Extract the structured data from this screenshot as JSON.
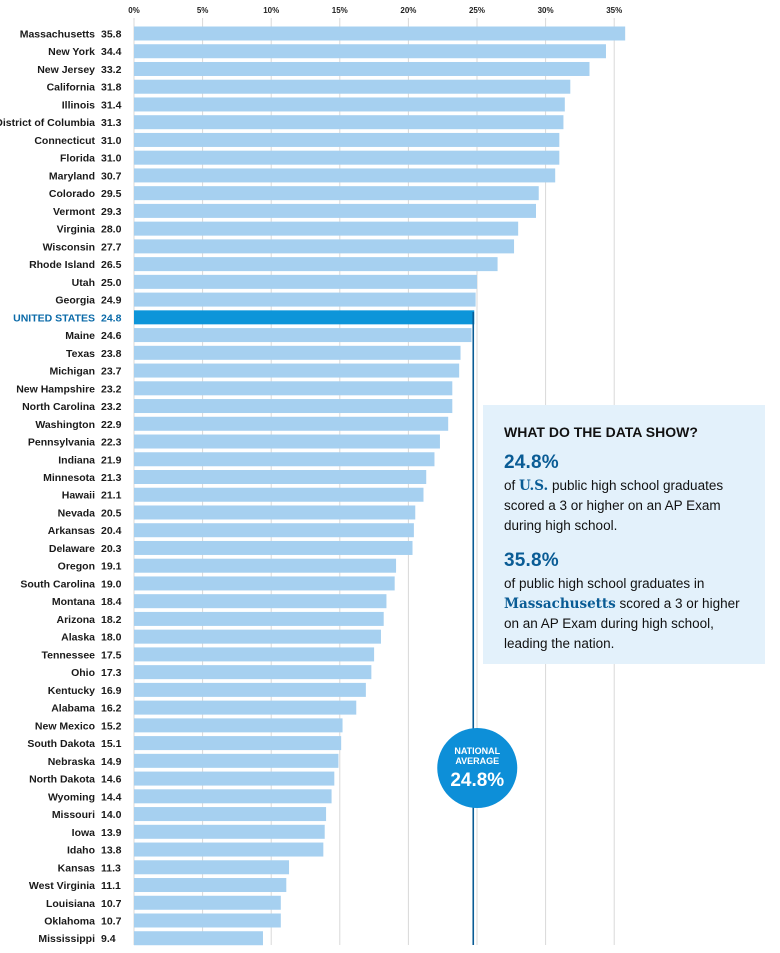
{
  "chart_data": {
    "type": "bar",
    "orientation": "horizontal",
    "title": "",
    "xlabel": "",
    "ylabel": "",
    "xlim": [
      0,
      35
    ],
    "x_ticks": [
      "0%",
      "5%",
      "10%",
      "15%",
      "20%",
      "25%",
      "30%",
      "35%"
    ],
    "x_tick_values": [
      0,
      5,
      10,
      15,
      20,
      25,
      30,
      35
    ],
    "grid": true,
    "categories": [
      "Massachusetts",
      "New York",
      "New Jersey",
      "California",
      "Illinois",
      "District of Columbia",
      "Connecticut",
      "Florida",
      "Maryland",
      "Colorado",
      "Vermont",
      "Virginia",
      "Wisconsin",
      "Rhode Island",
      "Utah",
      "Georgia",
      "UNITED STATES",
      "Maine",
      "Texas",
      "Michigan",
      "New Hampshire",
      "North Carolina",
      "Washington",
      "Pennsylvania",
      "Indiana",
      "Minnesota",
      "Hawaii",
      "Nevada",
      "Arkansas",
      "Delaware",
      "Oregon",
      "South Carolina",
      "Montana",
      "Arizona",
      "Alaska",
      "Tennessee",
      "Ohio",
      "Kentucky",
      "Alabama",
      "New Mexico",
      "South Dakota",
      "Nebraska",
      "North Dakota",
      "Wyoming",
      "Missouri",
      "Iowa",
      "Idaho",
      "Kansas",
      "West Virginia",
      "Louisiana",
      "Oklahoma",
      "Mississippi"
    ],
    "values": [
      35.8,
      34.4,
      33.2,
      31.8,
      31.4,
      31.3,
      31.0,
      31.0,
      30.7,
      29.5,
      29.3,
      28.0,
      27.7,
      26.5,
      25.0,
      24.9,
      24.8,
      24.6,
      23.8,
      23.7,
      23.2,
      23.2,
      22.9,
      22.3,
      21.9,
      21.3,
      21.1,
      20.5,
      20.4,
      20.3,
      19.1,
      19.0,
      18.4,
      18.2,
      18.0,
      17.5,
      17.3,
      16.9,
      16.2,
      15.2,
      15.1,
      14.9,
      14.6,
      14.4,
      14.0,
      13.9,
      13.8,
      11.3,
      11.1,
      10.7,
      10.7,
      9.4
    ],
    "value_labels": [
      "35.8",
      "34.4",
      "33.2",
      "31.8",
      "31.4",
      "31.3",
      "31.0",
      "31.0",
      "30.7",
      "29.5",
      "29.3",
      "28.0",
      "27.7",
      "26.5",
      "25.0",
      "24.9",
      "24.8",
      "24.6",
      "23.8",
      "23.7",
      "23.2",
      "23.2",
      "22.9",
      "22.3",
      "21.9",
      "21.3",
      "21.1",
      "20.5",
      "20.4",
      "20.3",
      "19.1",
      "19.0",
      "18.4",
      "18.2",
      "18.0",
      "17.5",
      "17.3",
      "16.9",
      "16.2",
      "15.2",
      "15.1",
      "14.9",
      "14.6",
      "14.4",
      "14.0",
      "13.9",
      "13.8",
      "11.3",
      "11.1",
      "10.7",
      "10.7",
      "9.4"
    ],
    "highlight_category": "UNITED STATES",
    "reference_line": {
      "value": 24.8,
      "label_line1": "NATIONAL",
      "label_line2": "AVERAGE",
      "label_value": "24.8%"
    },
    "colors": {
      "bar": "#a6d0f0",
      "highlight_bar": "#0d95d9",
      "highlight_text": "#0a6aa8",
      "grid": "#d9d9d9",
      "reference_line": "#0a5c95",
      "badge": "#0d8fd8"
    }
  },
  "info_box": {
    "title": "WHAT DO THE DATA SHOW?",
    "stat1_value": "24.8%",
    "stat1_pre": "of ",
    "stat1_emph": "U.S.",
    "stat1_post": " public high school graduates scored a 3 or higher on an AP Exam during high school.",
    "stat2_value": "35.8%",
    "stat2_pre": "of public high school graduates in ",
    "stat2_emph": "Massachusetts",
    "stat2_post": " scored a 3 or higher on an AP Exam during high school, leading the nation.",
    "background": "#e3f1fb"
  }
}
